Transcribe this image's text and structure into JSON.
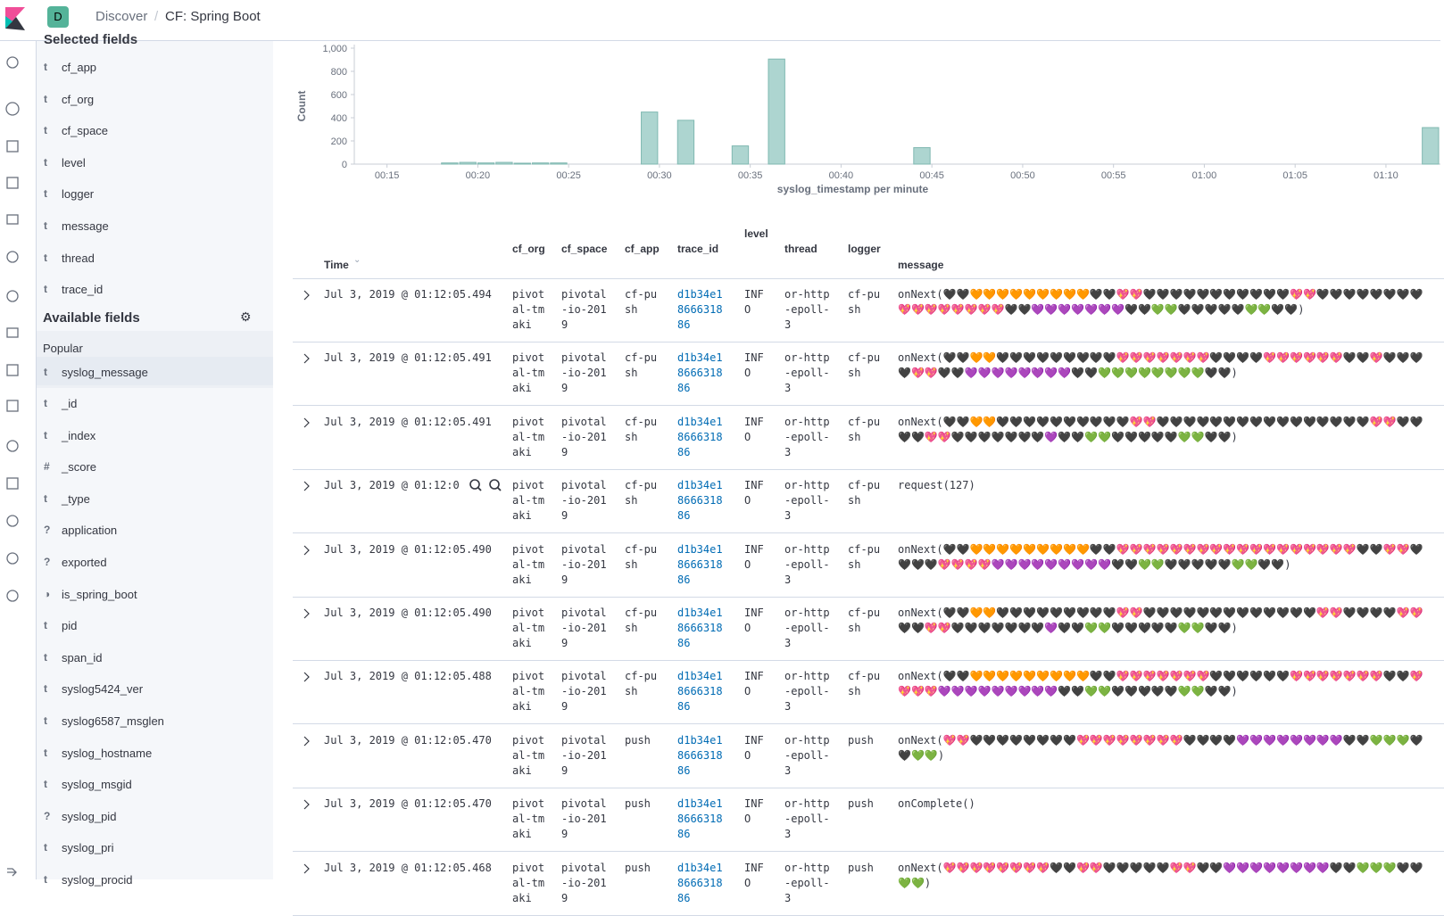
{
  "header": {
    "avatar": "D",
    "breadcrumbs": [
      "Discover",
      "CF: Spring Boot"
    ]
  },
  "sidebar": {
    "selected_title": "Selected fields",
    "selected_fields": [
      {
        "type": "t",
        "name": "cf_app"
      },
      {
        "type": "t",
        "name": "cf_org"
      },
      {
        "type": "t",
        "name": "cf_space"
      },
      {
        "type": "t",
        "name": "level"
      },
      {
        "type": "t",
        "name": "logger"
      },
      {
        "type": "t",
        "name": "message"
      },
      {
        "type": "t",
        "name": "thread"
      },
      {
        "type": "t",
        "name": "trace_id"
      }
    ],
    "available_title": "Available fields",
    "popular_title": "Popular",
    "popular_fields": [
      {
        "type": "t",
        "name": "syslog_message"
      }
    ],
    "available_fields": [
      {
        "type": "t",
        "name": "_id"
      },
      {
        "type": "t",
        "name": "_index"
      },
      {
        "type": "#",
        "name": "_score"
      },
      {
        "type": "t",
        "name": "_type"
      },
      {
        "type": "?",
        "name": "application"
      },
      {
        "type": "?",
        "name": "exported"
      },
      {
        "type": "◑",
        "name": "is_spring_boot"
      },
      {
        "type": "t",
        "name": "pid"
      },
      {
        "type": "t",
        "name": "span_id"
      },
      {
        "type": "t",
        "name": "syslog5424_ver"
      },
      {
        "type": "t",
        "name": "syslog6587_msglen"
      },
      {
        "type": "t",
        "name": "syslog_hostname"
      },
      {
        "type": "t",
        "name": "syslog_msgid"
      },
      {
        "type": "?",
        "name": "syslog_pid"
      },
      {
        "type": "t",
        "name": "syslog_pri"
      },
      {
        "type": "t",
        "name": "syslog_procid"
      }
    ]
  },
  "chart_data": {
    "type": "bar",
    "xlabel": "syslog_timestamp per minute",
    "ylabel": "Count",
    "color": "#add5d0",
    "x": [
      18,
      19,
      20,
      21,
      22,
      23,
      24,
      29,
      31,
      34,
      36,
      44,
      72
    ],
    "values": [
      10,
      15,
      10,
      15,
      8,
      10,
      10,
      449,
      378,
      157,
      906,
      142,
      315
    ],
    "xlim": [
      13.2,
      73
    ],
    "ylim": [
      0,
      1000
    ],
    "yticks": [
      0,
      200,
      400,
      600,
      800,
      {
        "value": 1000,
        "label": "1,000"
      }
    ],
    "xticks": [
      {
        "value": 15,
        "label": "00:15"
      },
      {
        "value": 20,
        "label": "00:20"
      },
      {
        "value": 25,
        "label": "00:25"
      },
      {
        "value": 30,
        "label": "00:30"
      },
      {
        "value": 35,
        "label": "00:35"
      },
      {
        "value": 40,
        "label": "00:40"
      },
      {
        "value": 45,
        "label": "00:45"
      },
      {
        "value": 50,
        "label": "00:50"
      },
      {
        "value": 55,
        "label": "00:55"
      },
      {
        "value": 60,
        "label": "01:00"
      },
      {
        "value": 65,
        "label": "01:05"
      },
      {
        "value": 70,
        "label": "01:10"
      }
    ]
  },
  "table": {
    "columns": [
      "Time",
      "cf_org",
      "cf_space",
      "cf_app",
      "trace_id",
      "level",
      "thread",
      "logger",
      "message"
    ],
    "rows": [
      [
        "Jul 3, 2019 @ 01:12:05.494",
        "pivotal-tmaki",
        "pivotal-io-2019",
        "cf-push",
        "d1b34e1866631886",
        "INFO",
        "or-http-epoll-3",
        "cf-push",
        "onNext(🖤🖤🧡🧡🧡🧡🧡🧡🧡🧡🧡🖤🖤💖💖🖤🖤🖤🖤🖤🖤🖤🖤🖤🖤🖤💖💖🖤🖤🖤🖤🖤🖤🖤🖤💖💖💖💖💖💖💖💖🖤🖤💜💜💜💜💜💜💜🖤🖤💚💚🖤🖤🖤🖤🖤💚💚🖤🖤)"
      ],
      [
        "Jul 3, 2019 @ 01:12:05.491",
        "pivotal-tmaki",
        "pivotal-io-2019",
        "cf-push",
        "d1b34e1866631886",
        "INFO",
        "or-http-epoll-3",
        "cf-push",
        "onNext(🖤🖤🧡🧡🖤🖤🖤🖤🖤🖤🖤🖤🖤💖💖💖💖💖💖💖🖤🖤🖤🖤💖💖💖💖💖💖🖤🖤💖🖤🖤🖤🖤💖💖🖤🖤💜💜💜💜💜💜💜💜🖤🖤💚💚💚💚💚💚💚💚🖤🖤)"
      ],
      [
        "Jul 3, 2019 @ 01:12:05.491",
        "pivotal-tmaki",
        "pivotal-io-2019",
        "cf-push",
        "d1b34e1866631886",
        "INFO",
        "or-http-epoll-3",
        "cf-push",
        "onNext(🖤🖤🧡🧡🖤🖤🖤🖤🖤🖤🖤🖤🖤🖤💖💖🖤🖤🖤🖤🖤🖤🖤🖤🖤🖤🖤🖤🖤🖤🖤🖤💖💖🖤🖤🖤🖤💖💖🖤🖤🖤🖤🖤🖤🖤💜🖤🖤💚💚🖤🖤🖤🖤🖤💚💚🖤🖤)"
      ],
      [
        "Jul 3, 2019 @ 01:12:0",
        "pivotal-tmaki",
        "pivotal-io-2019",
        "cf-push",
        "d1b34e1866631886",
        "INFO",
        "or-http-epoll-3",
        "cf-push",
        "request(127)"
      ],
      [
        "Jul 3, 2019 @ 01:12:05.490",
        "pivotal-tmaki",
        "pivotal-io-2019",
        "cf-push",
        "d1b34e1866631886",
        "INFO",
        "or-http-epoll-3",
        "cf-push",
        "onNext(🖤🖤🧡🧡🧡🧡🧡🧡🧡🧡🧡🖤🖤💖💖💖💖💖💖💖💖💖💖💖💖💖💖💖💖💖💖🖤🖤💖💖🖤🖤🖤🖤💖💖💖💖💜💜💜💜💜💜💜💜💜🖤🖤💚💚🖤🖤🖤🖤🖤💚💚🖤🖤)"
      ],
      [
        "Jul 3, 2019 @ 01:12:05.490",
        "pivotal-tmaki",
        "pivotal-io-2019",
        "cf-push",
        "d1b34e1866631886",
        "INFO",
        "or-http-epoll-3",
        "cf-push",
        "onNext(🖤🖤🧡🧡🖤🖤🖤🖤🖤🖤🖤🖤🖤💖💖🖤🖤🖤🖤🖤🖤🖤🖤🖤🖤🖤🖤🖤💖💖🖤🖤🖤🖤💖💖🖤🖤💖💖🖤🖤🖤🖤🖤🖤🖤💜🖤🖤💚💚🖤🖤🖤🖤🖤💚💚🖤🖤)"
      ],
      [
        "Jul 3, 2019 @ 01:12:05.488",
        "pivotal-tmaki",
        "pivotal-io-2019",
        "cf-push",
        "d1b34e1866631886",
        "INFO",
        "or-http-epoll-3",
        "cf-push",
        "onNext(🖤🖤🧡🧡🧡🧡🧡🧡🧡🧡🧡🖤🖤💖💖💖💖💖💖💖🖤🖤🖤🖤🖤🖤💖💖💖💖💖💖💖🖤🖤💖💖💖💖💜💜💜💜💜💜💜💜💜🖤🖤💚💚🖤🖤🖤🖤🖤💚💚🖤🖤)"
      ],
      [
        "Jul 3, 2019 @ 01:12:05.470",
        "pivotal-tmaki",
        "pivotal-io-2019",
        "push",
        "d1b34e1866631886",
        "INFO",
        "or-http-epoll-3",
        "push",
        "onNext(💖💖🖤🖤🖤🖤🖤🖤🖤🖤💖💖💖💖💖💖💖💖🖤🖤🖤🖤💜💜💜💜💜💜💜💜🖤🖤💚💚💚🖤🖤💚💚)"
      ],
      [
        "Jul 3, 2019 @ 01:12:05.470",
        "pivotal-tmaki",
        "pivotal-io-2019",
        "push",
        "d1b34e1866631886",
        "INFO",
        "or-http-epoll-3",
        "push",
        "onComplete()"
      ],
      [
        "Jul 3, 2019 @ 01:12:05.468",
        "pivotal-tmaki",
        "pivotal-io-2019",
        "push",
        "d1b34e1866631886",
        "INFO",
        "or-http-epoll-3",
        "push",
        "onNext(💖💖💖💖💖💖💖💖🖤🖤💖💖🖤🖤🖤🖤🖤💖💖🖤🖤💜💜💜💜💜💜💜💜🖤🖤💚💚💚🖤🖤💚💚)"
      ]
    ]
  }
}
